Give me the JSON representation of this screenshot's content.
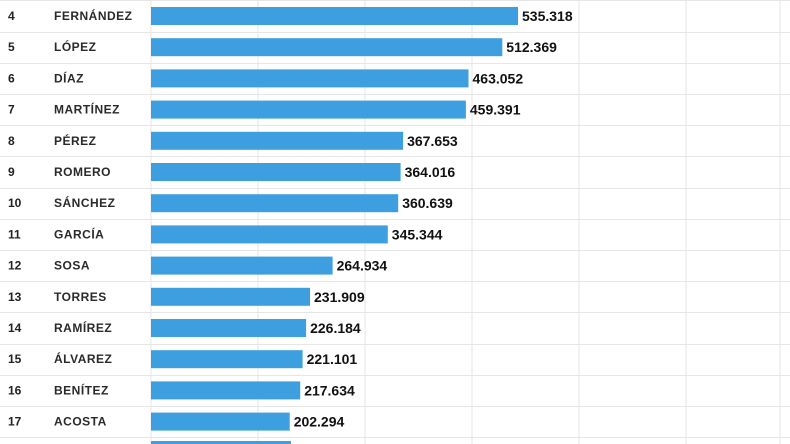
{
  "chart_data": {
    "type": "bar",
    "orientation": "horizontal",
    "categories": [
      "FERNÁNDEZ",
      "LÓPEZ",
      "DÍAZ",
      "MARTÍNEZ",
      "PÉREZ",
      "ROMERO",
      "SÁNCHEZ",
      "GARCÍA",
      "SOSA",
      "TORRES",
      "RAMÍREZ",
      "ÁLVAREZ",
      "BENÍTEZ",
      "ACOSTA"
    ],
    "ranks": [
      "4",
      "5",
      "6",
      "7",
      "8",
      "9",
      "10",
      "11",
      "12",
      "13",
      "14",
      "15",
      "16",
      "17"
    ],
    "values": [
      535318,
      512369,
      463052,
      459391,
      367653,
      364016,
      360639,
      345344,
      264934,
      231909,
      226184,
      221101,
      217634,
      202294
    ],
    "value_labels": [
      "535.318",
      "512.369",
      "463.052",
      "459.391",
      "367.653",
      "364.016",
      "360.639",
      "345.344",
      "264.934",
      "231.909",
      "226.184",
      "221.101",
      "217.634",
      "202.294"
    ],
    "title": "",
    "xlabel": "",
    "ylabel": "",
    "grid": true,
    "colors": {
      "bar": "#3d9ee0",
      "grid": "#e6e6e6"
    }
  }
}
